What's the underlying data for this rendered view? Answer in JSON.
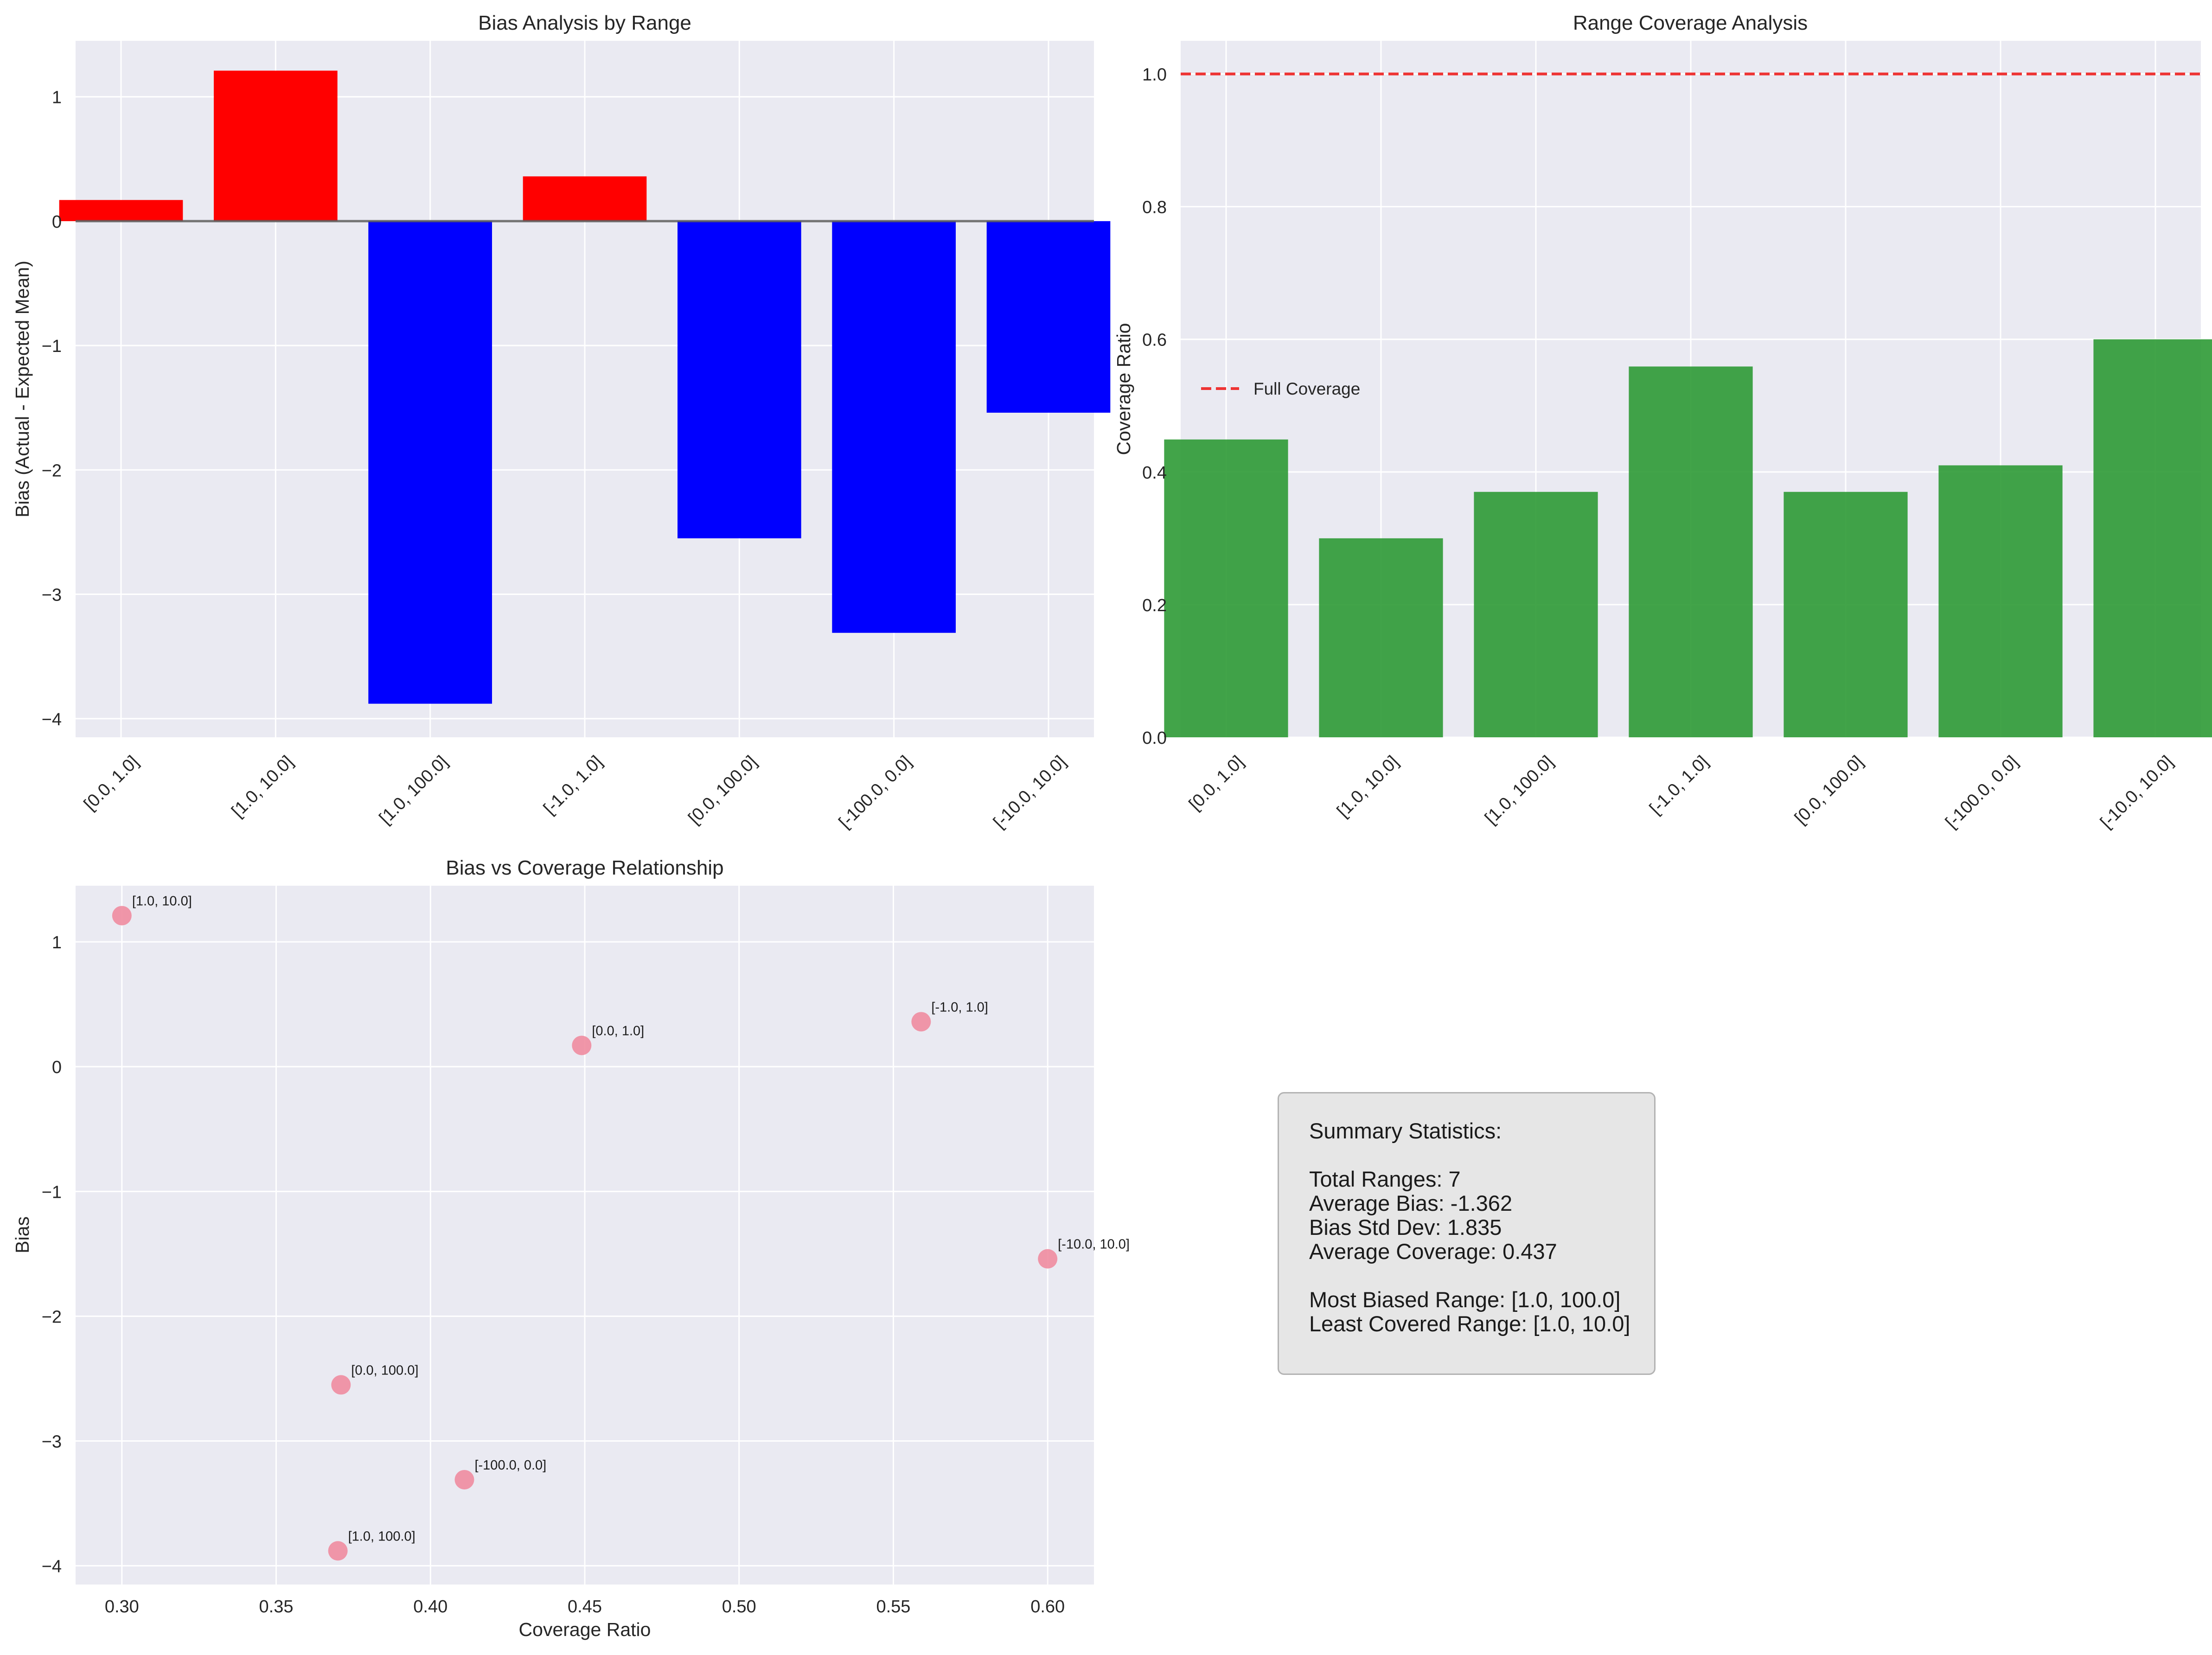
{
  "chart_data": [
    {
      "type": "bar",
      "title": "Bias Analysis by Range",
      "xlabel": "",
      "ylabel": "Bias (Actual - Expected Mean)",
      "categories": [
        "[0.0, 1.0]",
        "[1.0, 10.0]",
        "[1.0, 100.0]",
        "[-1.0, 1.0]",
        "[0.0, 100.0]",
        "[-100.0, 0.0]",
        "[-10.0, 10.0]"
      ],
      "values": [
        0.17,
        1.21,
        -3.88,
        0.36,
        -2.55,
        -3.31,
        -1.54
      ],
      "positive_color": "#ff0000",
      "negative_color": "#0000ff",
      "ylim": [
        -4.15,
        1.45
      ],
      "yticks": [
        1,
        0,
        -1,
        -2,
        -3,
        -4
      ],
      "ytick_labels": [
        "1",
        "0",
        "−1",
        "−2",
        "−3",
        "−4"
      ],
      "zero_line": true,
      "grid": true
    },
    {
      "type": "bar",
      "title": "Range Coverage Analysis",
      "xlabel": "",
      "ylabel": "Coverage Ratio",
      "categories": [
        "[0.0, 1.0]",
        "[1.0, 10.0]",
        "[1.0, 100.0]",
        "[-1.0, 1.0]",
        "[0.0, 100.0]",
        "[-100.0, 0.0]",
        "[-10.0, 10.0]"
      ],
      "values": [
        0.449,
        0.3,
        0.37,
        0.559,
        0.37,
        0.41,
        0.6
      ],
      "bar_color": "#2e9a35",
      "ylim": [
        0,
        1.05
      ],
      "yticks": [
        0,
        0.2,
        0.4,
        0.6,
        0.8,
        1.0
      ],
      "ytick_labels": [
        "0.0",
        "0.2",
        "0.4",
        "0.6",
        "0.8",
        "1.0"
      ],
      "reference_line": {
        "y": 1.0,
        "label": "Full Coverage",
        "color": "#ee3333",
        "style": "dashed"
      },
      "legend_position": "center-left",
      "grid": true
    },
    {
      "type": "scatter",
      "title": "Bias vs Coverage Relationship",
      "xlabel": "Coverage Ratio",
      "ylabel": "Bias",
      "points": [
        {
          "label": "[0.0, 1.0]",
          "x": 0.449,
          "y": 0.17
        },
        {
          "label": "[1.0, 10.0]",
          "x": 0.3,
          "y": 1.21
        },
        {
          "label": "[1.0, 100.0]",
          "x": 0.37,
          "y": -3.88
        },
        {
          "label": "[-1.0, 1.0]",
          "x": 0.559,
          "y": 0.36
        },
        {
          "label": "[0.0, 100.0]",
          "x": 0.371,
          "y": -2.55
        },
        {
          "label": "[-100.0, 0.0]",
          "x": 0.411,
          "y": -3.31
        },
        {
          "label": "[-10.0, 10.0]",
          "x": 0.6,
          "y": -1.54
        }
      ],
      "point_color": "#f08ca0",
      "xlim": [
        0.285,
        0.615
      ],
      "ylim": [
        -4.15,
        1.45
      ],
      "xticks": [
        0.3,
        0.35,
        0.4,
        0.45,
        0.5,
        0.55,
        0.6
      ],
      "xtick_labels": [
        "0.30",
        "0.35",
        "0.40",
        "0.45",
        "0.50",
        "0.55",
        "0.60"
      ],
      "yticks": [
        1,
        0,
        -1,
        -2,
        -3,
        -4
      ],
      "ytick_labels": [
        "1",
        "0",
        "−1",
        "−2",
        "−3",
        "−4"
      ],
      "grid": true
    }
  ],
  "summary": {
    "heading": "Summary Statistics:",
    "total_ranges": "Total Ranges: 7",
    "average_bias": "Average Bias: -1.362",
    "bias_std": "Bias Std Dev: 1.835",
    "average_coverage": "Average Coverage: 0.437",
    "most_biased": "Most Biased Range: [1.0, 100.0]",
    "least_covered": "Least Covered Range: [1.0, 10.0]"
  },
  "colors": {
    "axes_bg": "#eaeaf2",
    "grid": "#ffffff",
    "tick_text": "#262626"
  }
}
